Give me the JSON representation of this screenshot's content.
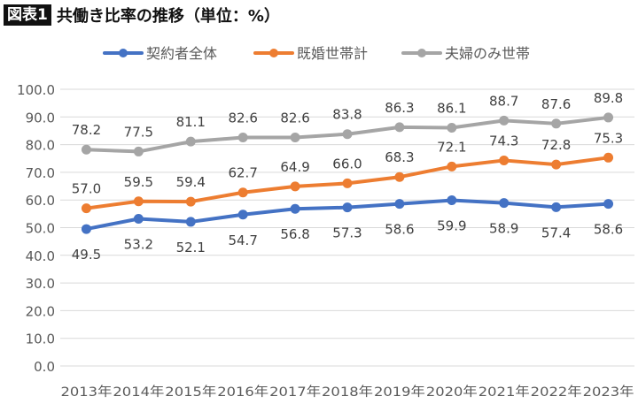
{
  "header": {
    "badge": "図表1",
    "title": "共働き比率の推移（単位：%）"
  },
  "chart_data": {
    "type": "line",
    "title": "共働き比率の推移（単位：%）",
    "categories": [
      "2013年",
      "2014年",
      "2015年",
      "2016年",
      "2017年",
      "2018年",
      "2019年",
      "2020年",
      "2021年",
      "2022年",
      "2023年"
    ],
    "ylim": [
      0,
      100
    ],
    "yticks": [
      "0.0",
      "10.0",
      "20.0",
      "30.0",
      "40.0",
      "50.0",
      "60.0",
      "70.0",
      "80.0",
      "90.0",
      "100.0"
    ],
    "grid": true,
    "legend_position": "top",
    "series": [
      {
        "name": "契約者全体",
        "color": "#4472C4",
        "label_pos": "below",
        "values": [
          49.5,
          53.2,
          52.1,
          54.7,
          56.8,
          57.3,
          58.6,
          59.9,
          58.9,
          57.4,
          58.6
        ]
      },
      {
        "name": "既婚世帯計",
        "color": "#ED7D31",
        "label_pos": "above",
        "values": [
          57.0,
          59.5,
          59.4,
          62.7,
          64.9,
          66.0,
          68.3,
          72.1,
          74.3,
          72.8,
          75.3
        ]
      },
      {
        "name": "夫婦のみ世帯",
        "color": "#A5A5A5",
        "label_pos": "above",
        "values": [
          78.2,
          77.5,
          81.1,
          82.6,
          82.6,
          83.8,
          86.3,
          86.1,
          88.7,
          87.6,
          89.8
        ]
      }
    ]
  }
}
